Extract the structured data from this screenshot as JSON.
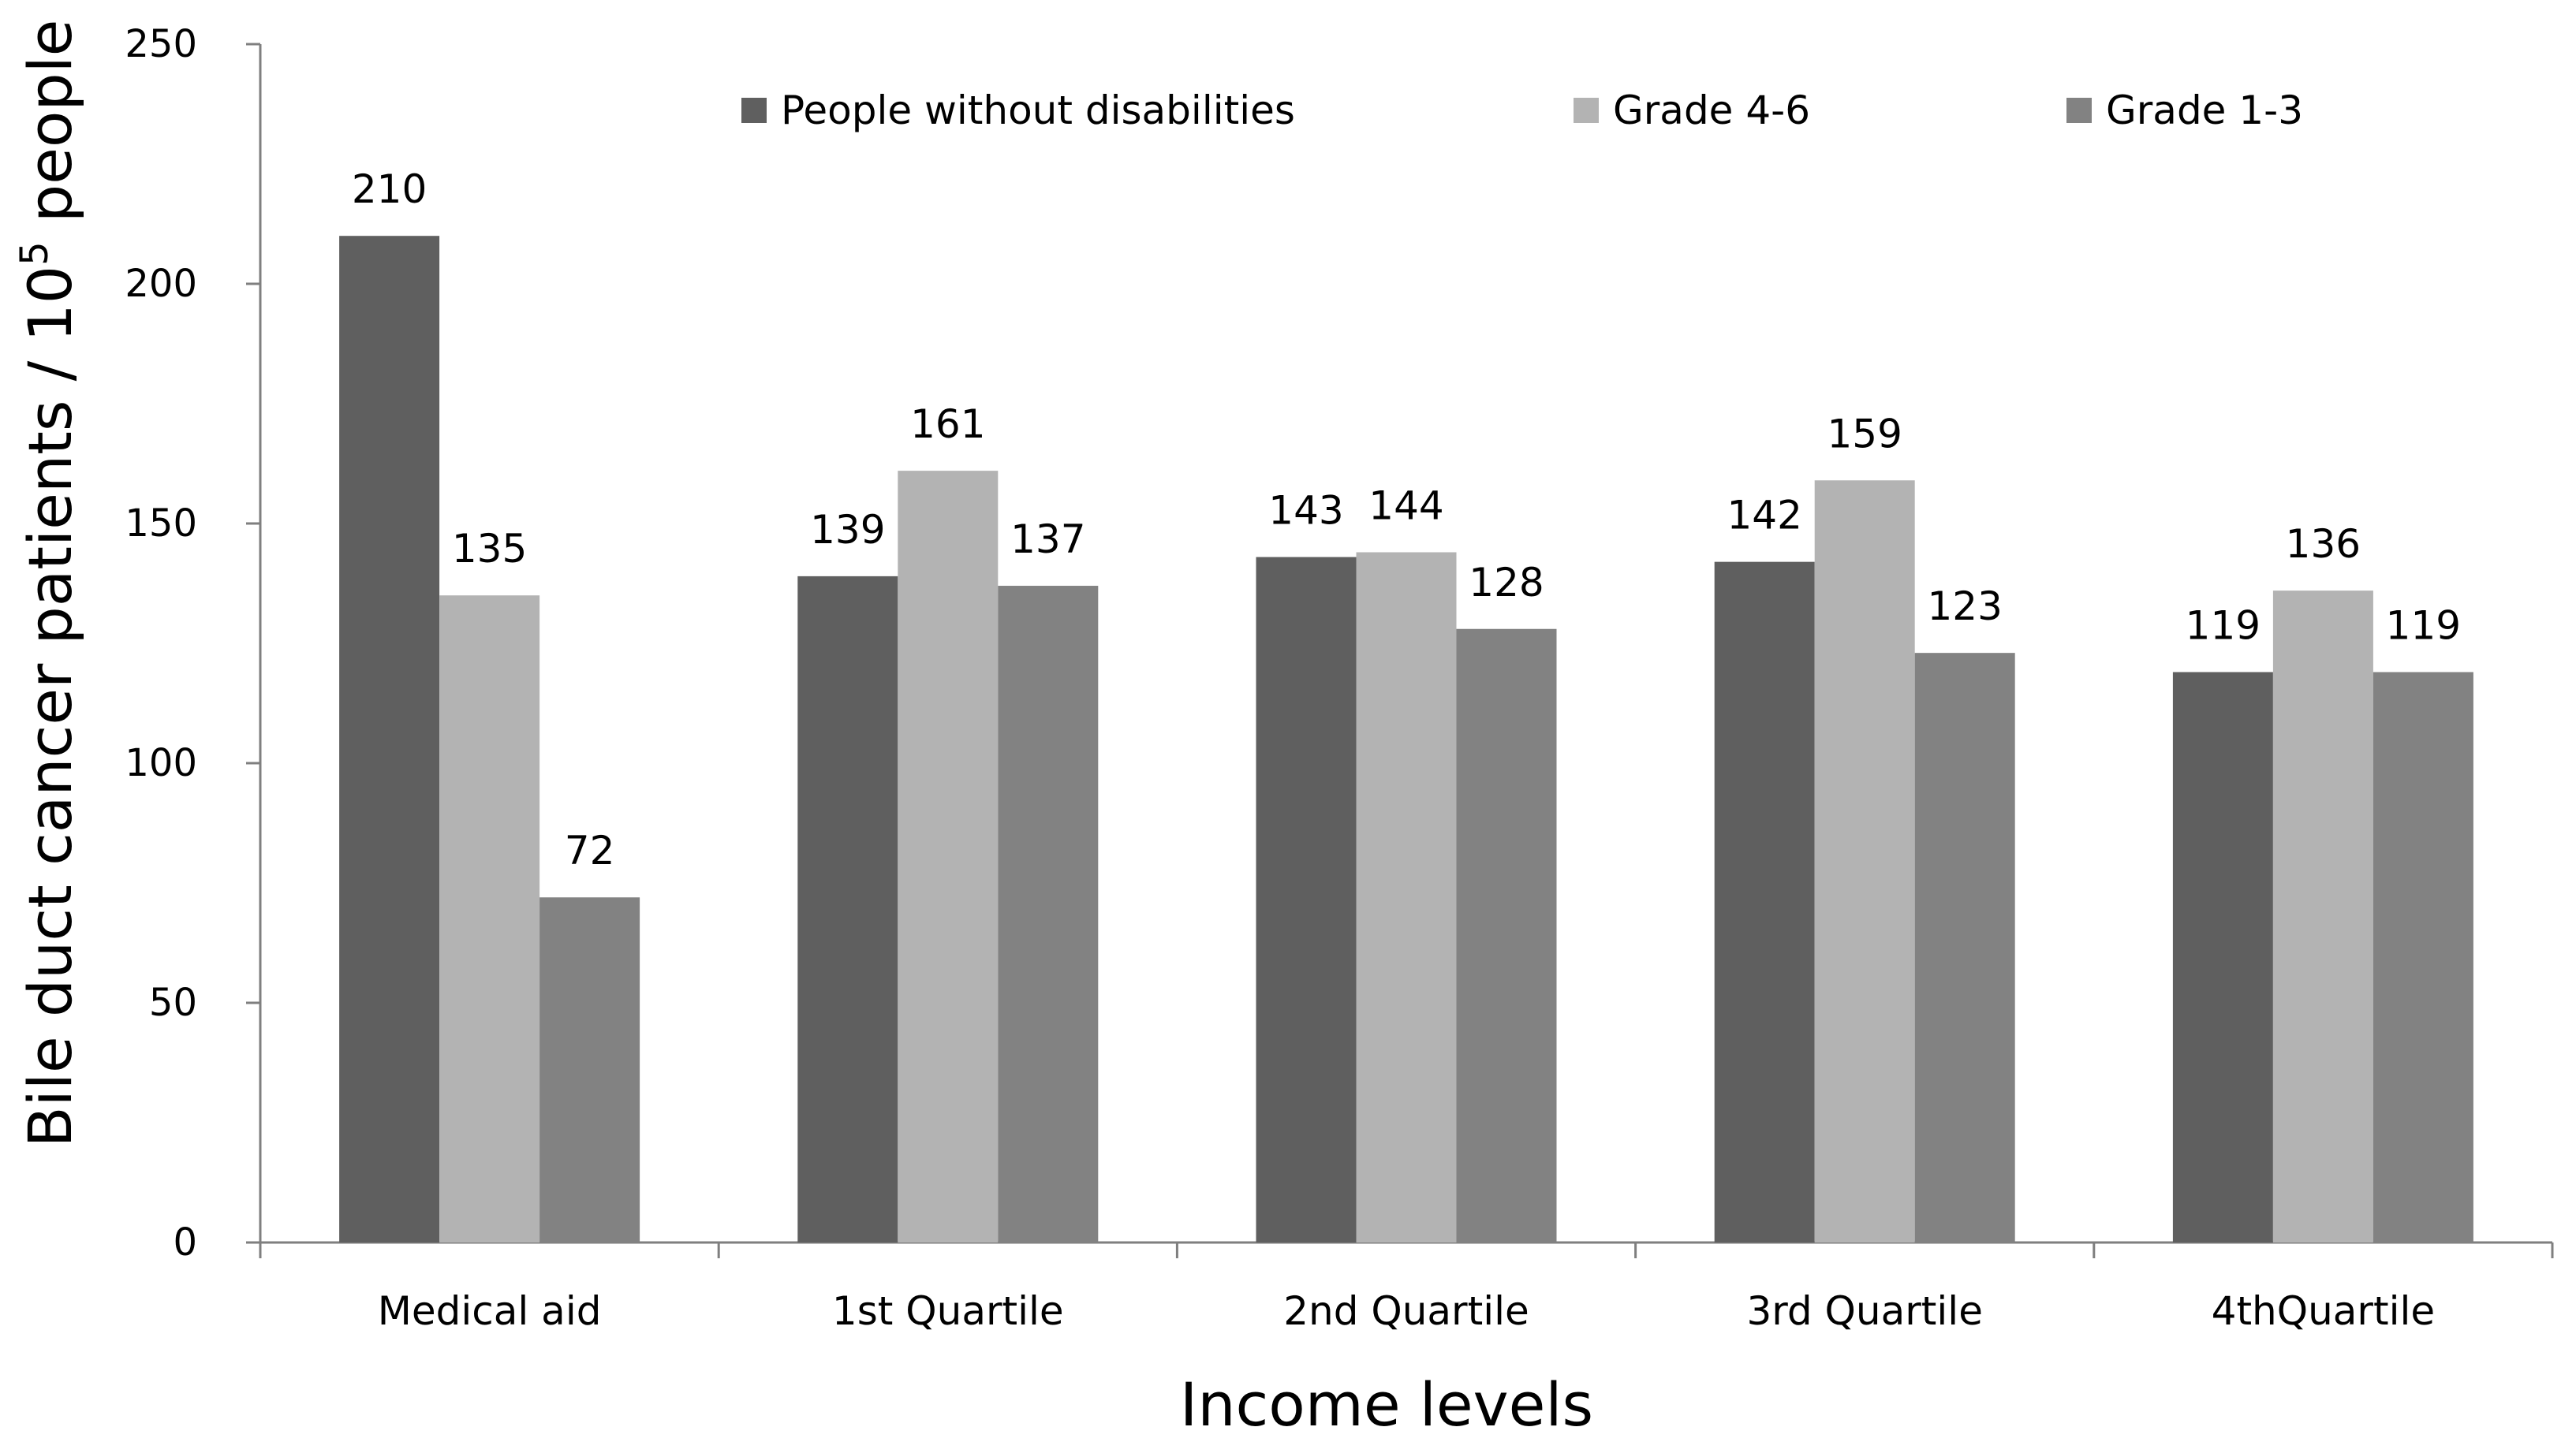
{
  "chart_data": {
    "type": "bar",
    "title": "",
    "xlabel": "Income levels",
    "ylabel": {
      "text": "Bile duct cancer patients / 10",
      "superscript": "5",
      "suffix": " people"
    },
    "ylim": [
      0,
      250
    ],
    "yticks": [
      0,
      50,
      100,
      150,
      200,
      250
    ],
    "grid": false,
    "legend_position": "top",
    "categories": [
      "Medical aid",
      "1st Quartile",
      "2nd Quartile",
      "3rd Quartile",
      "4thQuartile"
    ],
    "series": [
      {
        "name": "People without disabilities",
        "color": "#5f5f5f",
        "values": [
          210,
          139,
          143,
          142,
          119
        ]
      },
      {
        "name": "Grade 4-6",
        "color": "#b3b3b3",
        "values": [
          135,
          161,
          144,
          159,
          136
        ]
      },
      {
        "name": "Grade 1-3",
        "color": "#828282",
        "values": [
          72,
          137,
          128,
          123,
          119
        ]
      }
    ]
  }
}
